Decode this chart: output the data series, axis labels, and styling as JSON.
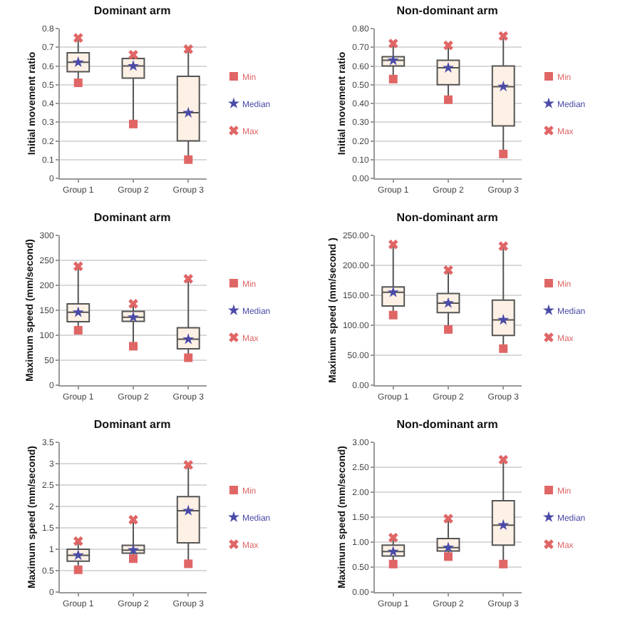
{
  "chart_data": [
    {
      "type": "box",
      "title": "Dominant arm",
      "ylabel": "Initial movement ratio",
      "categories": [
        "Group 1",
        "Group 2",
        "Group 3"
      ],
      "boxes": [
        {
          "low": 0.51,
          "q1": 0.57,
          "median": 0.62,
          "q3": 0.67,
          "high": 0.75
        },
        {
          "low": 0.29,
          "q1": 0.535,
          "median": 0.6,
          "q3": 0.64,
          "high": 0.66
        },
        {
          "low": 0.1,
          "q1": 0.2,
          "median": 0.35,
          "q3": 0.545,
          "high": 0.69
        }
      ],
      "series": [
        {
          "name": "Min",
          "type": "scatter",
          "marker": "square",
          "color": "#e06666",
          "x": [
            "Group 1",
            "Group 2",
            "Group 3"
          ],
          "values": [
            0.51,
            0.29,
            0.1
          ]
        },
        {
          "name": "Median",
          "type": "scatter",
          "marker": "star",
          "color": "#4a4aa8",
          "x": [
            "Group 1",
            "Group 2",
            "Group 3"
          ],
          "values": [
            0.62,
            0.6,
            0.35
          ]
        },
        {
          "name": "Max",
          "type": "scatter",
          "marker": "cross",
          "color": "#e06666",
          "x": [
            "Group 1",
            "Group 2",
            "Group 3"
          ],
          "values": [
            0.75,
            0.66,
            0.69
          ]
        }
      ],
      "ylim": [
        0,
        0.8
      ],
      "yticks": [
        0,
        0.1,
        0.2,
        0.3,
        0.4,
        0.5,
        0.6,
        0.7,
        0.8
      ],
      "grid": "y",
      "legend": "right"
    },
    {
      "type": "box",
      "title": "Non-dominant arm",
      "ylabel": "Initial movement ratio",
      "categories": [
        "Group 1",
        "Group 2",
        "Group 3"
      ],
      "boxes": [
        {
          "low": 0.53,
          "q1": 0.6,
          "median": 0.63,
          "q3": 0.65,
          "high": 0.72
        },
        {
          "low": 0.42,
          "q1": 0.5,
          "median": 0.59,
          "q3": 0.63,
          "high": 0.71
        },
        {
          "low": 0.13,
          "q1": 0.28,
          "median": 0.49,
          "q3": 0.6,
          "high": 0.76
        }
      ],
      "series": [
        {
          "name": "Min",
          "type": "scatter",
          "marker": "square",
          "color": "#e06666",
          "x": [
            "Group 1",
            "Group 2",
            "Group 3"
          ],
          "values": [
            0.53,
            0.42,
            0.13
          ]
        },
        {
          "name": "Median",
          "type": "scatter",
          "marker": "star",
          "color": "#4a4aa8",
          "x": [
            "Group 1",
            "Group 2",
            "Group 3"
          ],
          "values": [
            0.63,
            0.59,
            0.49
          ]
        },
        {
          "name": "Max",
          "type": "scatter",
          "marker": "cross",
          "color": "#e06666",
          "x": [
            "Group 1",
            "Group 2",
            "Group 3"
          ],
          "values": [
            0.72,
            0.71,
            0.76
          ]
        }
      ],
      "ylim": [
        0,
        0.8
      ],
      "yticks": [
        {
          "value": 0,
          "label": "0.00"
        },
        {
          "value": 0.1,
          "label": "0.10"
        },
        {
          "value": 0.2,
          "label": "0.20"
        },
        {
          "value": 0.3,
          "label": "0.30"
        },
        {
          "value": 0.4,
          "label": "0.40"
        },
        {
          "value": 0.5,
          "label": "0.50"
        },
        {
          "value": 0.6,
          "label": "0.60"
        },
        {
          "value": 0.7,
          "label": "0.70"
        },
        {
          "value": 0.8,
          "label": "0.80"
        }
      ],
      "grid": "y",
      "legend": "right"
    },
    {
      "type": "box",
      "title": "Dominant arm",
      "ylabel": "Maximum speed (mm/second)",
      "categories": [
        "Group 1",
        "Group 2",
        "Group 3"
      ],
      "boxes": [
        {
          "low": 110,
          "q1": 127,
          "median": 146,
          "q3": 163,
          "high": 238
        },
        {
          "low": 78,
          "q1": 128,
          "median": 136,
          "q3": 148,
          "high": 163
        },
        {
          "low": 55,
          "q1": 73,
          "median": 92,
          "q3": 115,
          "high": 213
        }
      ],
      "series": [
        {
          "name": "Min",
          "type": "scatter",
          "marker": "square",
          "color": "#e06666",
          "x": [
            "Group 1",
            "Group 2",
            "Group 3"
          ],
          "values": [
            110,
            78,
            55
          ]
        },
        {
          "name": "Median",
          "type": "scatter",
          "marker": "star",
          "color": "#4a4aa8",
          "x": [
            "Group 1",
            "Group 2",
            "Group 3"
          ],
          "values": [
            146,
            136,
            92
          ]
        },
        {
          "name": "Max",
          "type": "scatter",
          "marker": "cross",
          "color": "#e06666",
          "x": [
            "Group 1",
            "Group 2",
            "Group 3"
          ],
          "values": [
            238,
            163,
            213
          ]
        }
      ],
      "ylim": [
        0,
        300
      ],
      "yticks": [
        0,
        50,
        100,
        150,
        200,
        250,
        300
      ],
      "grid": "y",
      "legend": "right"
    },
    {
      "type": "box",
      "title": "Non-dominant arm",
      "ylabel": "Maximum speed (mm/second )",
      "categories": [
        "Group 1",
        "Group 2",
        "Group 3"
      ],
      "boxes": [
        {
          "low": 117,
          "q1": 132,
          "median": 155,
          "q3": 164,
          "high": 235
        },
        {
          "low": 93,
          "q1": 121,
          "median": 137,
          "q3": 153,
          "high": 192
        },
        {
          "low": 61,
          "q1": 83,
          "median": 109,
          "q3": 142,
          "high": 232
        }
      ],
      "series": [
        {
          "name": "Min",
          "type": "scatter",
          "marker": "square",
          "color": "#e06666",
          "x": [
            "Group 1",
            "Group 2",
            "Group 3"
          ],
          "values": [
            117,
            93,
            61
          ]
        },
        {
          "name": "Median",
          "type": "scatter",
          "marker": "star",
          "color": "#4a4aa8",
          "x": [
            "Group 1",
            "Group 2",
            "Group 3"
          ],
          "values": [
            155,
            137,
            109
          ]
        },
        {
          "name": "Max",
          "type": "scatter",
          "marker": "cross",
          "color": "#e06666",
          "x": [
            "Group 1",
            "Group 2",
            "Group 3"
          ],
          "values": [
            235,
            192,
            232
          ]
        }
      ],
      "ylim": [
        0,
        250
      ],
      "yticks": [
        {
          "value": 0,
          "label": "0.00"
        },
        {
          "value": 50,
          "label": "50.00"
        },
        {
          "value": 100,
          "label": "100.00"
        },
        {
          "value": 150,
          "label": "150.00"
        },
        {
          "value": 200,
          "label": "200.00"
        },
        {
          "value": 250,
          "label": "250.00"
        }
      ],
      "grid": "y",
      "legend": "right"
    },
    {
      "type": "box",
      "title": "Dominant arm",
      "ylabel": "Maximum speed (mm/second)",
      "categories": [
        "Group 1",
        "Group 2",
        "Group 3"
      ],
      "boxes": [
        {
          "low": 0.52,
          "q1": 0.72,
          "median": 0.86,
          "q3": 1.0,
          "high": 1.19
        },
        {
          "low": 0.78,
          "q1": 0.91,
          "median": 0.98,
          "q3": 1.09,
          "high": 1.69
        },
        {
          "low": 0.66,
          "q1": 1.15,
          "median": 1.9,
          "q3": 2.23,
          "high": 2.97
        }
      ],
      "series": [
        {
          "name": "Min",
          "type": "scatter",
          "marker": "square",
          "color": "#e06666",
          "x": [
            "Group 1",
            "Group 2",
            "Group 3"
          ],
          "values": [
            0.52,
            0.78,
            0.66
          ]
        },
        {
          "name": "Median",
          "type": "scatter",
          "marker": "star",
          "color": "#4a4aa8",
          "x": [
            "Group 1",
            "Group 2",
            "Group 3"
          ],
          "values": [
            0.86,
            0.98,
            1.9
          ]
        },
        {
          "name": "Max",
          "type": "scatter",
          "marker": "cross",
          "color": "#e06666",
          "x": [
            "Group 1",
            "Group 2",
            "Group 3"
          ],
          "values": [
            1.19,
            1.69,
            2.97
          ]
        }
      ],
      "ylim": [
        0,
        3.5
      ],
      "yticks": [
        0,
        0.5,
        1,
        1.5,
        2,
        2.5,
        3,
        3.5
      ],
      "grid": "y",
      "legend": "right"
    },
    {
      "type": "box",
      "title": "Non-dominant arm",
      "ylabel": "Maximum speed (mm/second)",
      "categories": [
        "Group 1",
        "Group 2",
        "Group 3"
      ],
      "boxes": [
        {
          "low": 0.56,
          "q1": 0.72,
          "median": 0.81,
          "q3": 0.94,
          "high": 1.09
        },
        {
          "low": 0.71,
          "q1": 0.82,
          "median": 0.89,
          "q3": 1.07,
          "high": 1.47
        },
        {
          "low": 0.56,
          "q1": 0.94,
          "median": 1.34,
          "q3": 1.83,
          "high": 2.65
        }
      ],
      "series": [
        {
          "name": "Min",
          "type": "scatter",
          "marker": "square",
          "color": "#e06666",
          "x": [
            "Group 1",
            "Group 2",
            "Group 3"
          ],
          "values": [
            0.56,
            0.71,
            0.56
          ]
        },
        {
          "name": "Median",
          "type": "scatter",
          "marker": "star",
          "color": "#4a4aa8",
          "x": [
            "Group 1",
            "Group 2",
            "Group 3"
          ],
          "values": [
            0.81,
            0.89,
            1.34
          ]
        },
        {
          "name": "Max",
          "type": "scatter",
          "marker": "cross",
          "color": "#e06666",
          "x": [
            "Group 1",
            "Group 2",
            "Group 3"
          ],
          "values": [
            1.09,
            1.47,
            2.65
          ]
        }
      ],
      "ylim": [
        0,
        3
      ],
      "yticks": [
        {
          "value": 0,
          "label": "0.00"
        },
        {
          "value": 0.5,
          "label": "0.50"
        },
        {
          "value": 1,
          "label": "1.00"
        },
        {
          "value": 1.5,
          "label": "1.50"
        },
        {
          "value": 2,
          "label": "2.00"
        },
        {
          "value": 2.5,
          "label": "2.50"
        },
        {
          "value": 3,
          "label": "3.00"
        }
      ],
      "grid": "y",
      "legend": "right"
    }
  ]
}
